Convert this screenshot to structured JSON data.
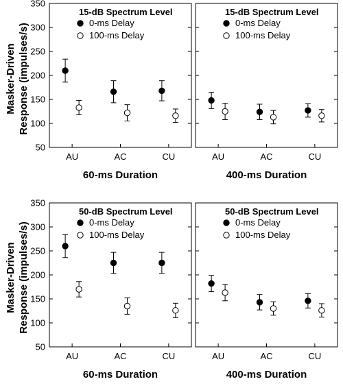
{
  "ylabel_line1": "Masker-Driven",
  "ylabel_line2": "Response (impulses/s)",
  "chart_data": [
    {
      "type": "scatter",
      "title": "15-dB Spectrum Level",
      "xlabel": "60-ms Duration",
      "ylabel": "Masker-Driven Response (impulses/s)",
      "categories": [
        "AU",
        "AC",
        "CU"
      ],
      "ylim": [
        50,
        350
      ],
      "yticks": [
        50,
        100,
        150,
        200,
        250,
        300,
        350
      ],
      "legend_position": "top-left",
      "series": [
        {
          "name": "0-ms Delay",
          "marker": "filled-circle",
          "values": [
            210,
            166,
            168
          ],
          "errors": [
            24,
            23,
            21
          ]
        },
        {
          "name": "100-ms Delay",
          "marker": "open-circle",
          "values": [
            133,
            122,
            116
          ],
          "errors": [
            15,
            17,
            14
          ]
        }
      ]
    },
    {
      "type": "scatter",
      "title": "15-dB Spectrum Level",
      "xlabel": "400-ms Duration",
      "categories": [
        "AU",
        "AC",
        "CU"
      ],
      "ylim": [
        50,
        350
      ],
      "legend_position": "top-left",
      "series": [
        {
          "name": "0-ms Delay",
          "marker": "filled-circle",
          "values": [
            148,
            124,
            127
          ],
          "errors": [
            17,
            16,
            14
          ]
        },
        {
          "name": "100-ms Delay",
          "marker": "open-circle",
          "values": [
            125,
            113,
            116
          ],
          "errors": [
            17,
            14,
            13
          ]
        }
      ]
    },
    {
      "type": "scatter",
      "title": "50-dB Spectrum Level",
      "xlabel": "60-ms Duration",
      "ylabel": "Masker-Driven Response (impulses/s)",
      "categories": [
        "AU",
        "AC",
        "CU"
      ],
      "ylim": [
        50,
        350
      ],
      "yticks": [
        50,
        100,
        150,
        200,
        250,
        300,
        350
      ],
      "legend_position": "top-left",
      "series": [
        {
          "name": "0-ms Delay",
          "marker": "filled-circle",
          "values": [
            260,
            225,
            225
          ],
          "errors": [
            24,
            22,
            22
          ]
        },
        {
          "name": "100-ms Delay",
          "marker": "open-circle",
          "values": [
            170,
            135,
            126
          ],
          "errors": [
            16,
            17,
            15
          ]
        }
      ]
    },
    {
      "type": "scatter",
      "title": "50-dB Spectrum Level",
      "xlabel": "400-ms Duration",
      "categories": [
        "AU",
        "AC",
        "CU"
      ],
      "ylim": [
        50,
        350
      ],
      "legend_position": "top-left",
      "series": [
        {
          "name": "0-ms Delay",
          "marker": "filled-circle",
          "values": [
            182,
            143,
            146
          ],
          "errors": [
            17,
            16,
            15
          ]
        },
        {
          "name": "100-ms Delay",
          "marker": "open-circle",
          "values": [
            163,
            130,
            126
          ],
          "errors": [
            17,
            14,
            14
          ]
        }
      ]
    }
  ]
}
